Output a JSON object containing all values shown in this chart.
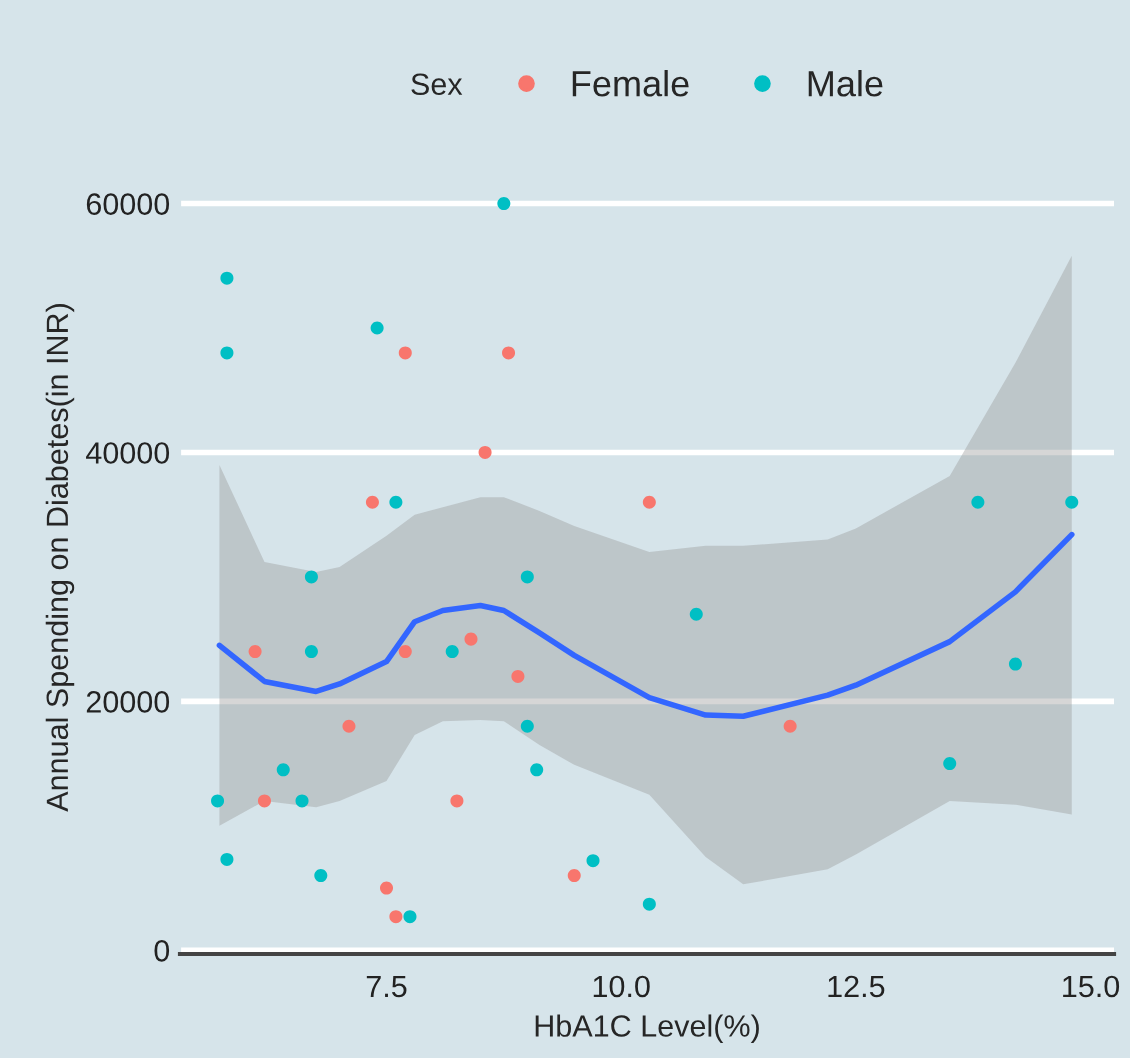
{
  "chart_data": {
    "type": "scatter",
    "xlabel": "HbA1C Level(%)",
    "ylabel": "Annual Spending on Diabetes(in INR)",
    "legend_title": "Sex",
    "xlim": [
      5.3,
      15.25
    ],
    "ylim": [
      -300,
      63500
    ],
    "xticks": [
      7.5,
      {
        "value": 10,
        "label": "10.0"
      },
      12.5,
      {
        "value": 15,
        "label": "15.0"
      }
    ],
    "yticks": [
      0,
      20000,
      40000,
      60000
    ],
    "grid": "y",
    "legend": "top",
    "series": [
      {
        "name": "Female",
        "color": "#f8766d",
        "marker": "circle",
        "x": [
          7.7,
          8.8,
          8.55,
          7.35,
          10.3,
          6.1,
          7.7,
          8.4,
          8.9,
          7.1,
          6.2,
          8.25,
          7.5,
          7.6,
          9.5,
          11.8
        ],
        "values": [
          48000,
          48000,
          40000,
          36000,
          36000,
          24000,
          24000,
          25000,
          22000,
          18000,
          12000,
          12000,
          5000,
          2700,
          6000,
          18000
        ]
      },
      {
        "name": "Male",
        "color": "#00bfc4",
        "marker": "circle",
        "x": [
          5.8,
          5.8,
          7.4,
          8.75,
          5.8,
          5.7,
          6.4,
          6.6,
          6.7,
          6.7,
          7.6,
          8.2,
          9.0,
          9.0,
          9.1,
          6.8,
          7.75,
          9.7,
          10.3,
          10.8,
          13.8,
          14.2,
          13.5,
          14.8
        ],
        "values": [
          54000,
          48000,
          50000,
          60000,
          7300,
          12000,
          14500,
          12000,
          30000,
          24000,
          36000,
          24000,
          30000,
          18000,
          14500,
          6000,
          2700,
          7200,
          3700,
          27000,
          36000,
          23000,
          15000,
          36000
        ]
      },
      {
        "type": "line",
        "color": "#3366ff",
        "x": [
          5.72,
          6.2,
          6.75,
          7.0,
          7.5,
          7.8,
          8.1,
          8.5,
          8.75,
          9.13,
          9.5,
          10.3,
          10.9,
          11.3,
          12.2,
          12.5,
          13.5,
          14.2,
          14.8
        ],
        "values": [
          24500,
          21600,
          20800,
          21400,
          23200,
          26400,
          27300,
          27700,
          27300,
          25500,
          23700,
          20300,
          18900,
          18800,
          20500,
          21300,
          24800,
          28800,
          33400
        ],
        "lower": [
          10000,
          12000,
          11500,
          12000,
          13600,
          17300,
          18400,
          18500,
          18400,
          16500,
          14900,
          12500,
          7500,
          5300,
          6500,
          7700,
          12000,
          11700,
          10900
        ],
        "upper": [
          39000,
          31200,
          30400,
          30800,
          33300,
          35000,
          35600,
          36400,
          36400,
          35300,
          34100,
          32000,
          32500,
          32500,
          33000,
          33900,
          38100,
          47200,
          55800
        ]
      }
    ]
  }
}
